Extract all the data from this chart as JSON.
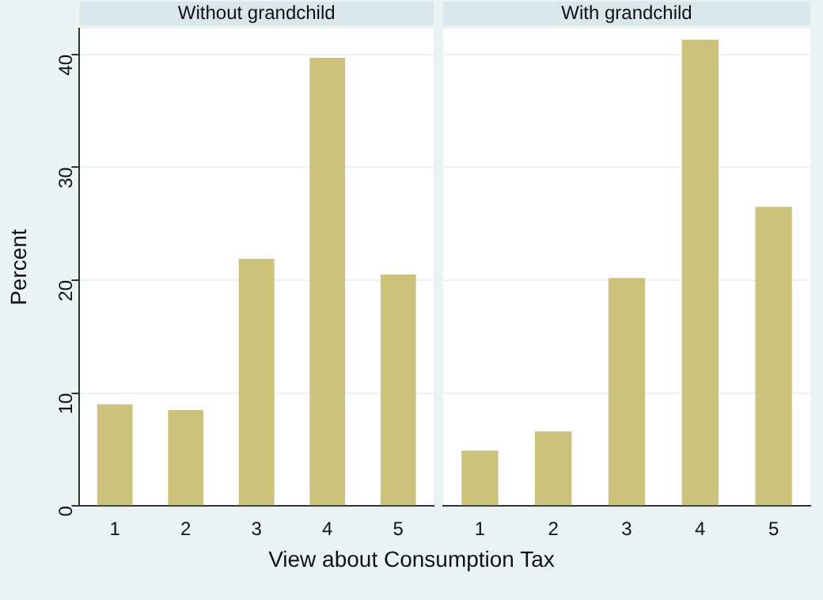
{
  "chart_data": [
    {
      "type": "bar",
      "title": "Without grandchild",
      "xlabel": "View about Consumption Tax",
      "ylabel": "Percent",
      "categories": [
        "1",
        "2",
        "3",
        "4",
        "5"
      ],
      "values": [
        9.0,
        8.5,
        21.9,
        39.7,
        20.5
      ],
      "color": "#ccc27c",
      "ylim": [
        0,
        42.3
      ],
      "yticks": [
        0,
        10,
        20,
        30,
        40
      ],
      "grid": "y"
    },
    {
      "type": "bar",
      "title": "With grandchild",
      "categories": [
        "1",
        "2",
        "3",
        "4",
        "5"
      ],
      "values": [
        4.9,
        6.6,
        20.2,
        41.3,
        26.5
      ],
      "color": "#ccc27c",
      "ylim": [
        0,
        42.3
      ],
      "yticks": [
        0,
        10,
        20,
        30,
        40
      ],
      "grid": "y",
      "tick_labels": "x"
    }
  ]
}
